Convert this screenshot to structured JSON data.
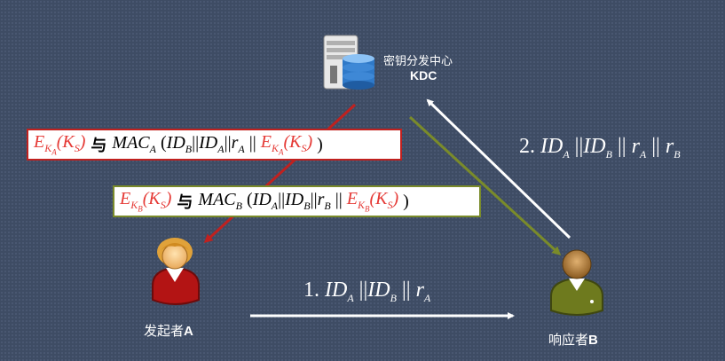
{
  "kdc": {
    "name": "密钥分发中心",
    "abbr": "KDC"
  },
  "initiator": {
    "label": "发起者",
    "letter": "A"
  },
  "responder": {
    "label": "响应者",
    "letter": "B"
  },
  "msg1": {
    "num": "1.",
    "id1": "ID",
    "s1": "A",
    "sep1": "||",
    "id2": "ID",
    "s2": "B",
    "sep2": "||",
    "r": "r",
    "rs": "A"
  },
  "msg2": {
    "num": "2.",
    "id1": "ID",
    "s1": "A",
    "sep1": "||",
    "id2": "ID",
    "s2": "B",
    "sep2": "||",
    "r1": "r",
    "r1s": "A",
    "sep3": "||",
    "r2": "r",
    "r2s": "B"
  },
  "msg3": {
    "e": "E",
    "k": "K",
    "kA": "A",
    "ks": "K",
    "ksS": "S",
    "with": "与",
    "mac": "MAC",
    "macSub": "A",
    "id1": "ID",
    "s1": "B",
    "id2": "ID",
    "s2": "A",
    "r": "r",
    "rs": "A"
  },
  "msg4": {
    "e": "E",
    "k": "K",
    "kB": "B",
    "ks": "K",
    "ksS": "S",
    "with": "与",
    "mac": "MAC",
    "macSub": "B",
    "id1": "ID",
    "s1": "A",
    "id2": "ID",
    "s2": "B",
    "r": "r",
    "rs": "B"
  },
  "colors": {
    "red": "#c0211f",
    "olive": "#7a8b2a",
    "white": "#ffffff"
  }
}
